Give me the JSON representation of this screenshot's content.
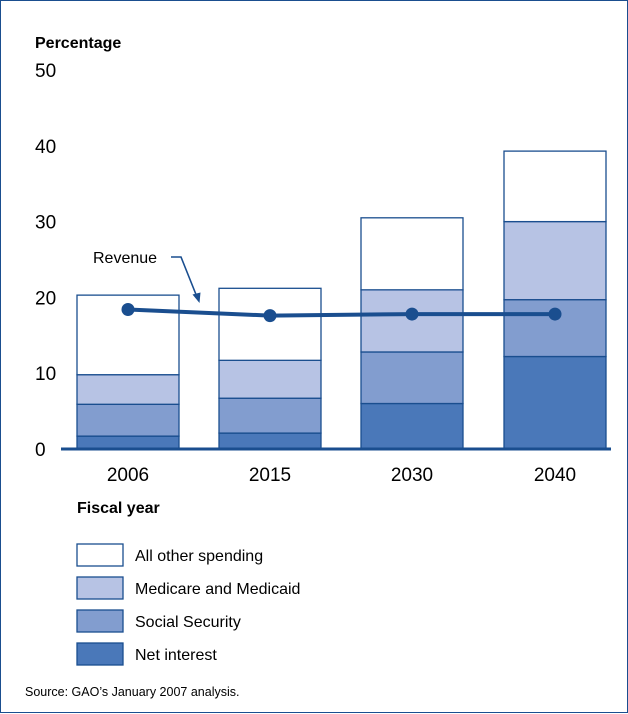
{
  "chart_data": {
    "type": "bar",
    "stacked": true,
    "ylabel": "Percentage",
    "xlabel": "Fiscal year",
    "ylim": [
      0,
      50
    ],
    "yticks": [
      0,
      10,
      20,
      30,
      40,
      50
    ],
    "categories": [
      "2006",
      "2015",
      "2030",
      "2040"
    ],
    "series": [
      {
        "name": "Net interest",
        "values": [
          1.7,
          2.1,
          6.0,
          12.2
        ],
        "color": "#4a78b9"
      },
      {
        "name": "Social Security",
        "values": [
          4.2,
          4.6,
          6.8,
          7.5
        ],
        "color": "#829dcf"
      },
      {
        "name": "Medicare and Medicaid",
        "values": [
          3.9,
          5.0,
          8.2,
          10.3
        ],
        "color": "#b7c3e4"
      },
      {
        "name": "All other spending",
        "values": [
          10.5,
          9.5,
          9.5,
          9.3
        ],
        "color": "#ffffff"
      }
    ],
    "line": {
      "name": "Revenue",
      "values": [
        18.4,
        17.6,
        17.8,
        17.8
      ],
      "color": "#1a4e8f"
    },
    "legend": {
      "placement": "bottom",
      "order": [
        "All other spending",
        "Medicare and Medicaid",
        "Social Security",
        "Net interest"
      ]
    },
    "source": "Source: GAO’s January 2007 analysis."
  }
}
